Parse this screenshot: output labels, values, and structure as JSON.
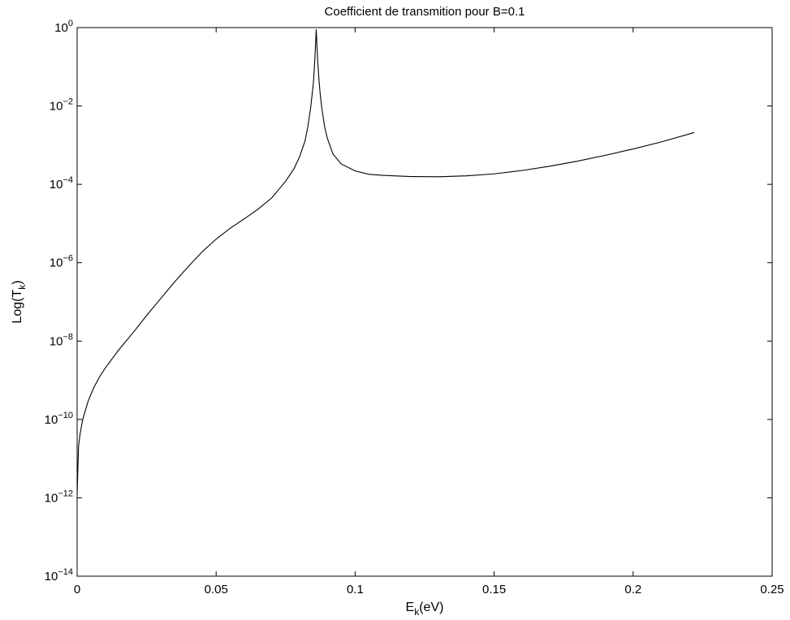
{
  "chart_data": {
    "type": "line",
    "title": "Coefficient de transmition pour B=0.1",
    "xlabel": {
      "main": "E",
      "sub": "k",
      "tail": "(eV)"
    },
    "ylabel": {
      "main": "Log(T",
      "sub": "k",
      "tail": ")"
    },
    "xlim": [
      0,
      0.25
    ],
    "ylim": [
      1e-14,
      1
    ],
    "yscale": "log",
    "grid": false,
    "x_ticks": [
      {
        "value": 0,
        "label": "0"
      },
      {
        "value": 0.05,
        "label": "0.05"
      },
      {
        "value": 0.1,
        "label": "0.1"
      },
      {
        "value": 0.15,
        "label": "0.15"
      },
      {
        "value": 0.2,
        "label": "0.2"
      },
      {
        "value": 0.25,
        "label": "0.25"
      }
    ],
    "y_ticks": [
      {
        "value": 1,
        "base": "10",
        "exp": "0"
      },
      {
        "value": 0.01,
        "base": "10",
        "exp": "−2"
      },
      {
        "value": 0.0001,
        "base": "10",
        "exp": "−4"
      },
      {
        "value": 1e-06,
        "base": "10",
        "exp": "−6"
      },
      {
        "value": 1e-08,
        "base": "10",
        "exp": "−8"
      },
      {
        "value": 1e-10,
        "base": "10",
        "exp": "−10"
      },
      {
        "value": 1e-12,
        "base": "10",
        "exp": "−12"
      },
      {
        "value": 1e-14,
        "base": "10",
        "exp": "−14"
      }
    ],
    "series": [
      {
        "line_color": "#000000",
        "x": [
          0,
          0.0005,
          0.001,
          0.002,
          0.004,
          0.006,
          0.008,
          0.01,
          0.015,
          0.02,
          0.025,
          0.03,
          0.035,
          0.04,
          0.045,
          0.05,
          0.055,
          0.06,
          0.065,
          0.07,
          0.075,
          0.078,
          0.08,
          0.082,
          0.083,
          0.084,
          0.085,
          0.0855,
          0.086,
          0.0865,
          0.087,
          0.0875,
          0.088,
          0.089,
          0.09,
          0.092,
          0.095,
          0.1,
          0.105,
          0.11,
          0.12,
          0.13,
          0.14,
          0.15,
          0.16,
          0.17,
          0.18,
          0.19,
          0.2,
          0.21,
          0.222
        ],
        "y": [
          1.3e-12,
          2e-11,
          4e-11,
          1e-10,
          3e-10,
          6.5e-10,
          1.2e-09,
          2e-09,
          6e-09,
          1.6e-08,
          4.5e-08,
          1.2e-07,
          3.2e-07,
          8e-07,
          1.9e-06,
          4e-06,
          7.5e-06,
          1.3e-05,
          2.3e-05,
          4.5e-05,
          0.00012,
          0.00025,
          0.0005,
          0.0013,
          0.003,
          0.009,
          0.04,
          0.15,
          0.9,
          0.15,
          0.045,
          0.018,
          0.009,
          0.003,
          0.0015,
          0.0006,
          0.00033,
          0.00022,
          0.00018,
          0.00017,
          0.000158,
          0.000156,
          0.000165,
          0.000185,
          0.000225,
          0.00029,
          0.00039,
          0.00055,
          0.0008,
          0.0012,
          0.0021
        ]
      }
    ]
  }
}
